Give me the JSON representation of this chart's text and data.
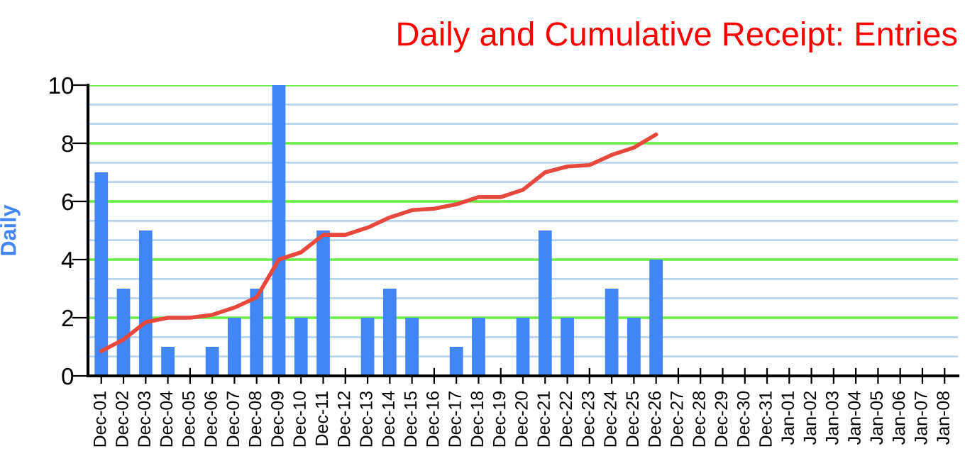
{
  "chart_data": {
    "type": "bar",
    "title": "Daily and Cumulative Receipt: Entries",
    "ylabel": "Daily",
    "categories": [
      "Dec-01",
      "Dec-02",
      "Dec-03",
      "Dec-04",
      "Dec-05",
      "Dec-06",
      "Dec-07",
      "Dec-08",
      "Dec-09",
      "Dec-10",
      "Dec-11",
      "Dec-12",
      "Dec-13",
      "Dec-14",
      "Dec-15",
      "Dec-16",
      "Dec-17",
      "Dec-18",
      "Dec-19",
      "Dec-20",
      "Dec-21",
      "Dec-22",
      "Dec-23",
      "Dec-24",
      "Dec-25",
      "Dec-26",
      "Dec-27",
      "Dec-28",
      "Dec-29",
      "Dec-30",
      "Dec-31",
      "Jan-01",
      "Jan-02",
      "Jan-03",
      "Jan-04",
      "Jan-05",
      "Jan-06",
      "Jan-07",
      "Jan-08"
    ],
    "series": [
      {
        "color": "#4285f4",
        "values": [
          7,
          3,
          5,
          1,
          0,
          1,
          2,
          3,
          10,
          2,
          5,
          0,
          2,
          3,
          2,
          0,
          1,
          2,
          0,
          2,
          5,
          2,
          0,
          3,
          2,
          4,
          null,
          null,
          null,
          null,
          null,
          null,
          null,
          null,
          null,
          null,
          null,
          null,
          null
        ]
      },
      {
        "type": "line",
        "color": "#e8483c",
        "values": [
          0.85,
          1.25,
          1.85,
          2.0,
          2.0,
          2.1,
          2.35,
          2.7,
          4.0,
          4.25,
          4.85,
          4.85,
          5.1,
          5.45,
          5.7,
          5.75,
          5.9,
          6.15,
          6.15,
          6.4,
          7.0,
          7.2,
          7.25,
          7.6,
          7.85,
          8.3,
          null,
          null,
          null,
          null,
          null,
          null,
          null,
          null,
          null,
          null,
          null,
          null,
          null
        ]
      }
    ],
    "ylim": [
      0,
      10
    ],
    "yticks": [
      0,
      {
        "value": 0.67,
        "label": null
      },
      {
        "value": 1.33,
        "label": null
      },
      2,
      {
        "value": 2.67,
        "label": null
      },
      {
        "value": 3.33,
        "label": null
      },
      4,
      {
        "value": 4.67,
        "label": null
      },
      {
        "value": 5.33,
        "label": null
      },
      6,
      {
        "value": 6.67,
        "label": null
      },
      {
        "value": 7.33,
        "label": null
      },
      8,
      {
        "value": 8.67,
        "label": null
      },
      {
        "value": 9.33,
        "label": null
      },
      10
    ],
    "grid": "y",
    "line_style": "solid",
    "marker": "none"
  }
}
